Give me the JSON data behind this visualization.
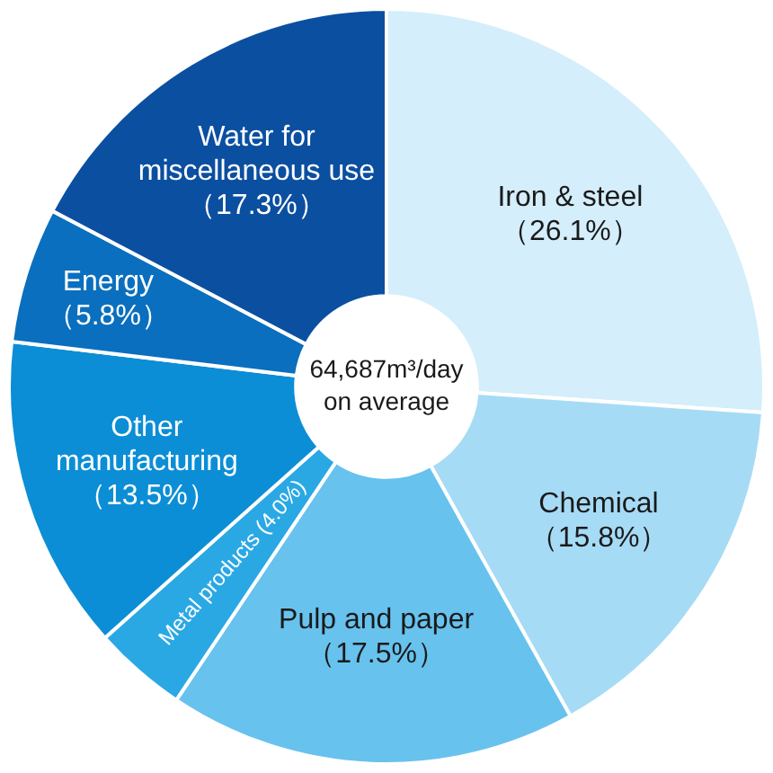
{
  "chart_data": {
    "type": "donut",
    "categories": [
      "Iron & steel",
      "Chemical",
      "Pulp and paper",
      "Metal products",
      "Other manufacturing",
      "Energy",
      "Water for miscellaneous use"
    ],
    "values": [
      26.1,
      15.8,
      17.5,
      4.0,
      13.5,
      5.8,
      17.3
    ],
    "value_labels": [
      "（26.1%）",
      "（15.8%）",
      "（17.5%）",
      "(4.0%)",
      "（13.5%）",
      "（5.8%）",
      "（17.3%）"
    ],
    "colors": [
      "#d4eefb",
      "#a6dbf6",
      "#67c2ee",
      "#2aa8e4",
      "#0b8ed6",
      "#0a6fbe",
      "#0b4fa0"
    ],
    "annotations": [
      "64,687m³/day on average"
    ],
    "legend": false
  }
}
